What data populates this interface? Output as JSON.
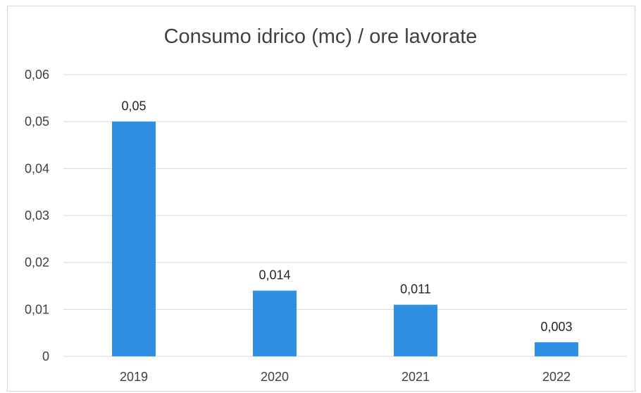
{
  "chart_data": {
    "type": "bar",
    "title": "Consumo idrico (mc) / ore lavorate",
    "xlabel": "",
    "ylabel": "",
    "categories": [
      "2019",
      "2020",
      "2021",
      "2022"
    ],
    "values": [
      0.05,
      0.014,
      0.011,
      0.003
    ],
    "data_labels": [
      "0,05",
      "0,014",
      "0,011",
      "0,003"
    ],
    "ylim": [
      0,
      0.06
    ],
    "y_ticks": [
      0,
      0.01,
      0.02,
      0.03,
      0.04,
      0.05,
      0.06
    ],
    "y_tick_labels": [
      "0",
      "0,01",
      "0,02",
      "0,03",
      "0,04",
      "0,05",
      "0,06"
    ],
    "grid": true,
    "legend": "none",
    "bar_color": "#2e8fe3",
    "grid_color": "#d9d9d9"
  }
}
